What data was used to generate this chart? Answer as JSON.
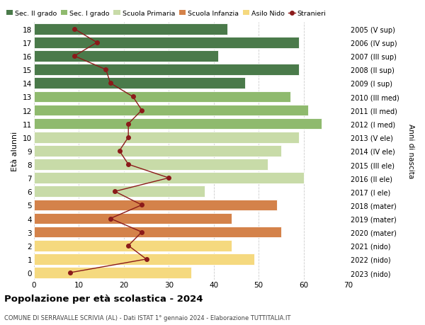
{
  "ages": [
    0,
    1,
    2,
    3,
    4,
    5,
    6,
    7,
    8,
    9,
    10,
    11,
    12,
    13,
    14,
    15,
    16,
    17,
    18
  ],
  "years_labels": [
    "2023 (nido)",
    "2022 (nido)",
    "2021 (nido)",
    "2020 (mater)",
    "2019 (mater)",
    "2018 (mater)",
    "2017 (I ele)",
    "2016 (II ele)",
    "2015 (III ele)",
    "2014 (IV ele)",
    "2013 (V ele)",
    "2012 (I med)",
    "2011 (II med)",
    "2010 (III med)",
    "2009 (I sup)",
    "2008 (II sup)",
    "2007 (III sup)",
    "2006 (IV sup)",
    "2005 (V sup)"
  ],
  "bar_values": [
    35,
    49,
    44,
    55,
    44,
    54,
    38,
    60,
    52,
    55,
    59,
    64,
    61,
    57,
    47,
    59,
    41,
    59,
    43
  ],
  "stranieri": [
    8,
    25,
    21,
    24,
    17,
    24,
    18,
    30,
    21,
    19,
    21,
    21,
    24,
    22,
    17,
    16,
    9,
    14,
    9
  ],
  "bar_colors": [
    "#f5d97f",
    "#f5d97f",
    "#f5d97f",
    "#d4824a",
    "#d4824a",
    "#d4824a",
    "#c8dba8",
    "#c8dba8",
    "#c8dba8",
    "#c8dba8",
    "#c8dba8",
    "#8fba6e",
    "#8fba6e",
    "#8fba6e",
    "#4a7a4a",
    "#4a7a4a",
    "#4a7a4a",
    "#4a7a4a",
    "#4a7a4a"
  ],
  "legend_labels": [
    "Sec. II grado",
    "Sec. I grado",
    "Scuola Primaria",
    "Scuola Infanzia",
    "Asilo Nido",
    "Stranieri"
  ],
  "legend_colors": [
    "#4a7a4a",
    "#8fba6e",
    "#c8dba8",
    "#d4824a",
    "#f5d97f",
    "#8b1a1a"
  ],
  "title": "Popolazione per età scolastica - 2024",
  "subtitle": "COMUNE DI SERRAVALLE SCRIVIA (AL) - Dati ISTAT 1° gennaio 2024 - Elaborazione TUTTITALIA.IT",
  "ylabel_left": "Età alunni",
  "ylabel_right": "Anni di nascita",
  "xlim": [
    0,
    70
  ],
  "xticks": [
    0,
    10,
    20,
    30,
    40,
    50,
    60,
    70
  ],
  "background_color": "#ffffff",
  "grid_color": "#cccccc",
  "stranieri_line_color": "#8b1a1a",
  "bar_height": 0.82
}
